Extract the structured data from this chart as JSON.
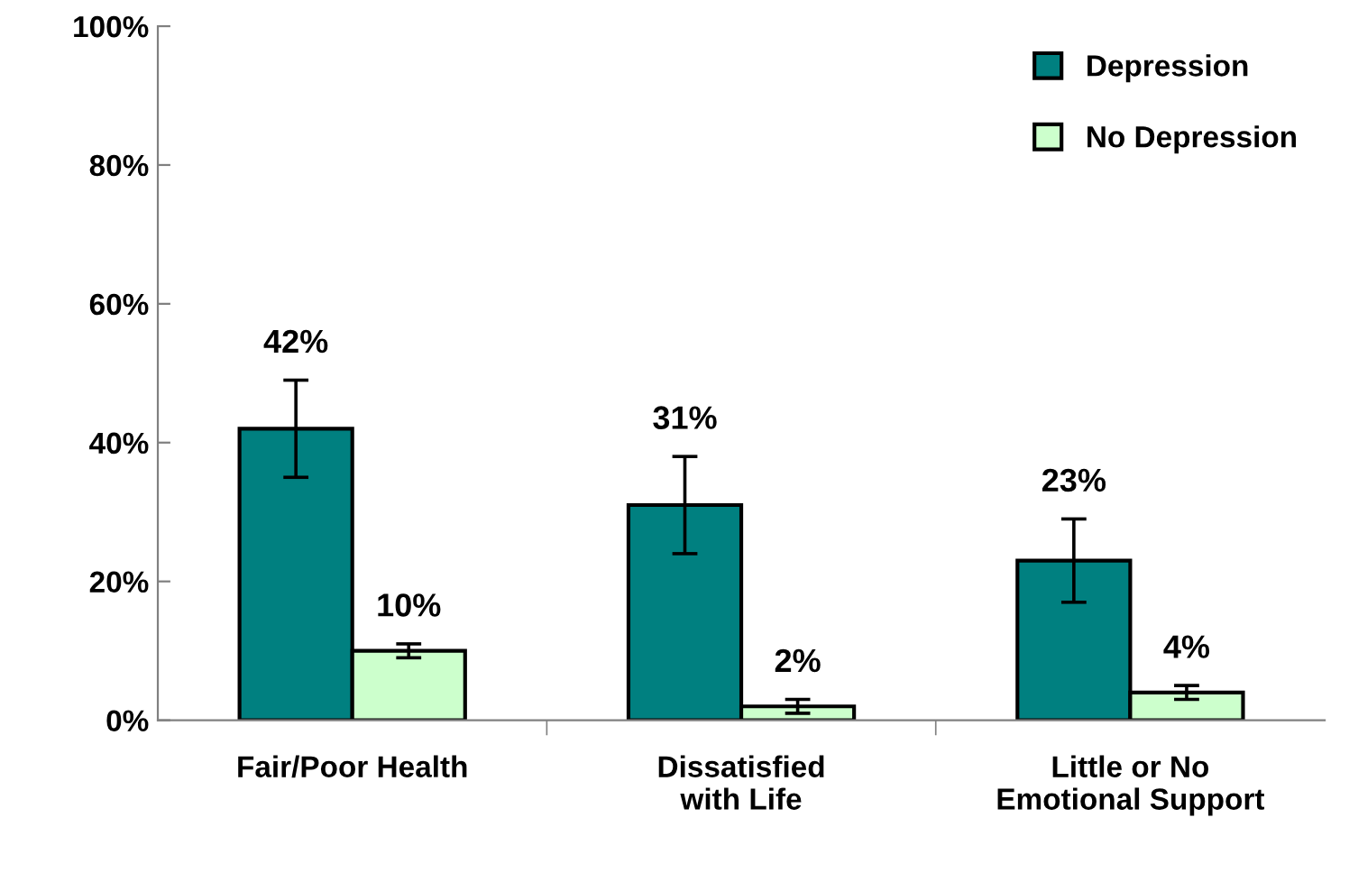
{
  "chart_data": {
    "type": "bar",
    "categories": [
      "Fair/Poor Health",
      "Dissatisfied\nwith Life",
      "Little or No\nEmotional Support"
    ],
    "series": [
      {
        "name": "Depression",
        "color": "#008080",
        "values": [
          42,
          31,
          23
        ],
        "errors": [
          7,
          7,
          6
        ],
        "value_labels": [
          "42%",
          "31%",
          "23%"
        ]
      },
      {
        "name": "No Depression",
        "color": "#ccffcc",
        "values": [
          10,
          2,
          4
        ],
        "errors": [
          1,
          1,
          1
        ],
        "value_labels": [
          "10%",
          "2%",
          "4%"
        ]
      }
    ],
    "ylim": [
      0,
      100
    ],
    "yticks": [
      {
        "value": 0,
        "label": "0%"
      },
      {
        "value": 20,
        "label": "20%"
      },
      {
        "value": 40,
        "label": "40%"
      },
      {
        "value": 60,
        "label": "60%"
      },
      {
        "value": 80,
        "label": "80%"
      },
      {
        "value": 100,
        "label": "100%"
      }
    ],
    "grid": false,
    "legend": "top right"
  }
}
